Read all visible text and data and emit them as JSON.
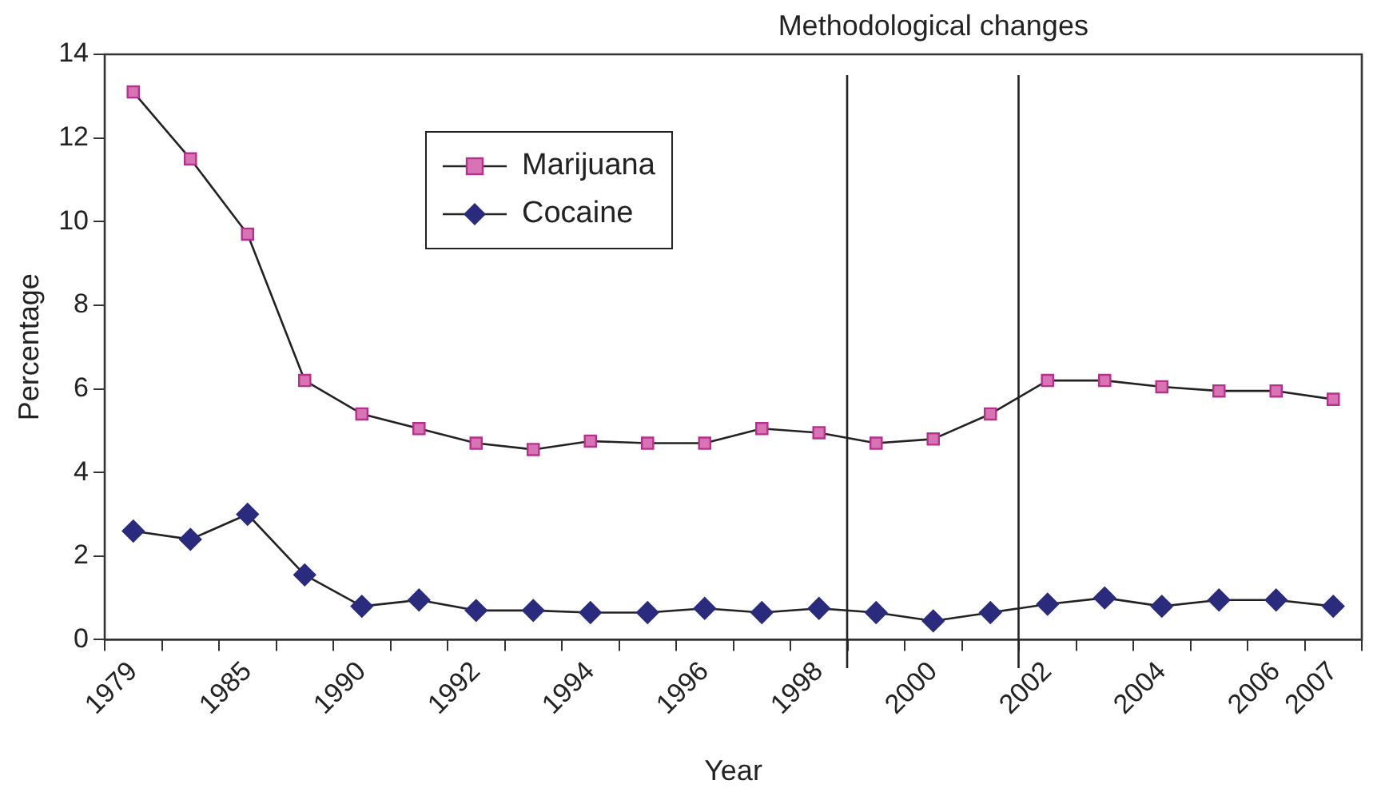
{
  "chart_data": {
    "type": "line",
    "xlabel": "Year",
    "ylabel": "Percentage",
    "categories": [
      "1979",
      null,
      "1985",
      null,
      "1990",
      null,
      "1992",
      null,
      "1994",
      null,
      "1996",
      null,
      "1998",
      null,
      "2000",
      null,
      "2002",
      null,
      "2004",
      null,
      "2006",
      "2007"
    ],
    "ylim": [
      0,
      14
    ],
    "yticks": [
      0,
      2,
      4,
      6,
      8,
      10,
      12,
      14
    ],
    "series": [
      {
        "name": "Marijuana",
        "color": "#d873b4",
        "marker": "square",
        "values": [
          13.1,
          11.5,
          9.7,
          6.2,
          5.4,
          5.05,
          4.7,
          4.55,
          4.75,
          4.7,
          4.7,
          5.05,
          4.95,
          4.7,
          4.8,
          5.4,
          6.2,
          6.2,
          6.05,
          5.95,
          5.95,
          5.75
        ]
      },
      {
        "name": "Cocaine",
        "color": "#2b2b7e",
        "marker": "diamond",
        "values": [
          2.6,
          2.4,
          3.0,
          1.55,
          0.8,
          0.95,
          0.7,
          0.7,
          0.65,
          0.65,
          0.75,
          0.65,
          0.75,
          0.65,
          0.45,
          0.65,
          0.85,
          1.0,
          0.8,
          0.95,
          0.95,
          0.8
        ]
      }
    ],
    "annotations": [
      "Methodological changes"
    ],
    "grid": false,
    "legend": "top left",
    "line_style": "solid"
  }
}
